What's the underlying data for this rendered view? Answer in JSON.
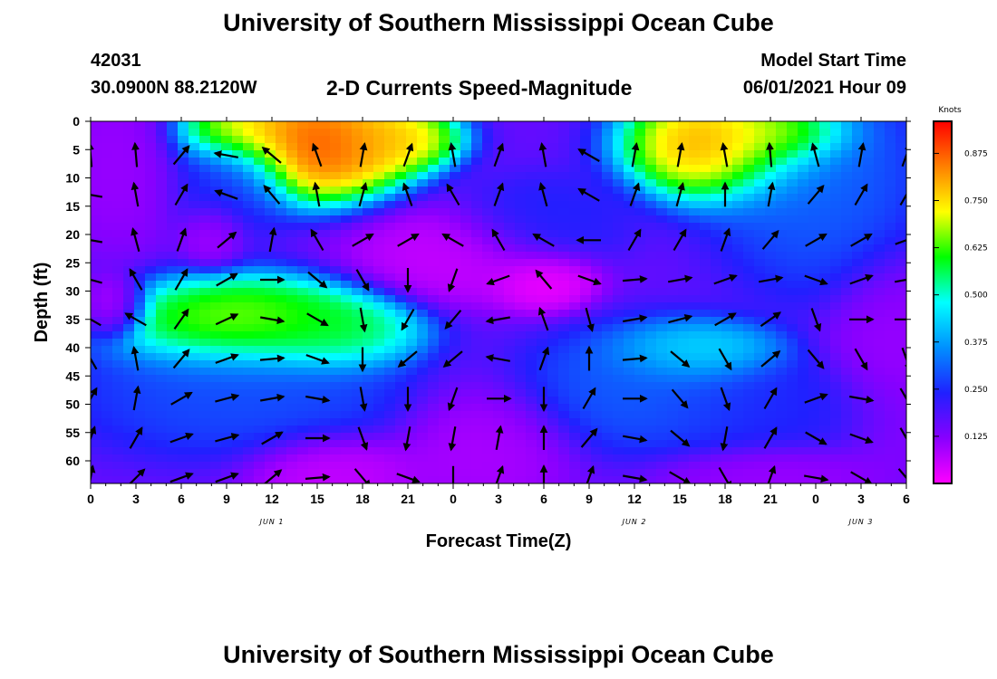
{
  "header": {
    "title": "University of Southern Mississippi Ocean Cube",
    "station_id": "42031",
    "station_coords": "30.0900N  88.2120W",
    "subtitle": "2-D Currents Speed-Magnitude",
    "model_start_label": "Model Start Time",
    "model_start_value": "06/01/2021 Hour 09"
  },
  "footer": {
    "title": "University of Southern Mississippi Ocean Cube"
  },
  "colors": {
    "scale": [
      "#ff00ff",
      "#8800ff",
      "#2020ff",
      "#0090ff",
      "#00ffff",
      "#00ff00",
      "#ffff00",
      "#ff8000",
      "#ff0000"
    ]
  },
  "chart_data": {
    "type": "heatmap",
    "title": "2-D Currents Speed-Magnitude",
    "xlabel": "Forecast Time(Z)",
    "ylabel": "Depth (ft)",
    "x_tick_labels": [
      "0",
      "3",
      "6",
      "9",
      "12",
      "15",
      "18",
      "21",
      "0",
      "3",
      "6",
      "9",
      "12",
      "15",
      "18",
      "21",
      "0",
      "3",
      "6"
    ],
    "x_range_hours": [
      0,
      54
    ],
    "y_tick_labels": [
      "0",
      "5",
      "10",
      "15",
      "20",
      "25",
      "30",
      "35",
      "40",
      "45",
      "50",
      "55",
      "60"
    ],
    "y_range_ft": [
      0,
      64
    ],
    "y_inverted": true,
    "date_labels": [
      {
        "text": "JUN 1",
        "hour": 12
      },
      {
        "text": "JUN 2",
        "hour": 36
      },
      {
        "text": "JUN 3",
        "hour": 51
      }
    ],
    "colorbar": {
      "unit": "Knots",
      "tick_labels": [
        "0.875",
        "0.750",
        "0.625",
        "0.500",
        "0.375",
        "0.250",
        "0.125"
      ],
      "tick_values": [
        0.875,
        0.75,
        0.625,
        0.5,
        0.375,
        0.25,
        0.125
      ],
      "range": [
        0.0,
        0.96
      ]
    },
    "speed_features": [
      {
        "hour": 15,
        "depth": 4,
        "speed": 0.95,
        "spread_h": 4.5,
        "spread_d": 7
      },
      {
        "hour": 10,
        "depth": 2,
        "speed": 0.85,
        "spread_h": 3,
        "spread_d": 4
      },
      {
        "hour": 20,
        "depth": 3,
        "speed": 0.8,
        "spread_h": 3,
        "spread_d": 4
      },
      {
        "hour": 42,
        "depth": 4,
        "speed": 0.9,
        "spread_h": 4.5,
        "spread_d": 7
      },
      {
        "hour": 46,
        "depth": 2,
        "speed": 0.8,
        "spread_h": 3,
        "spread_d": 4
      },
      {
        "hour": 10,
        "depth": 36,
        "speed": 0.72,
        "spread_h": 6,
        "spread_d": 6
      },
      {
        "hour": 16,
        "depth": 37,
        "speed": 0.6,
        "spread_h": 4,
        "spread_d": 5
      },
      {
        "hour": 40,
        "depth": 41,
        "speed": 0.5,
        "spread_h": 4,
        "spread_d": 4
      },
      {
        "hour": 37,
        "depth": 47,
        "speed": 0.32,
        "spread_h": 6,
        "spread_d": 8
      },
      {
        "hour": 10,
        "depth": 48,
        "speed": 0.3,
        "spread_h": 8,
        "spread_d": 8
      },
      {
        "hour": 48,
        "depth": 10,
        "speed": 0.32,
        "spread_h": 5,
        "spread_d": 14
      },
      {
        "hour": 9,
        "depth": 10,
        "speed": 0.25,
        "spread_h": 3,
        "spread_d": 8
      },
      {
        "hour": 30,
        "depth": 18,
        "speed": 0.25,
        "spread_h": 4,
        "spread_d": 6
      },
      {
        "hour": 45,
        "depth": 50,
        "speed": 0.25,
        "spread_h": 6,
        "spread_d": 6
      },
      {
        "hour": 30,
        "depth": 28,
        "speed": 0.0,
        "spread_h": 2.5,
        "spread_d": 4
      },
      {
        "hour": 24,
        "depth": 24,
        "speed": 0.05,
        "spread_h": 5,
        "spread_d": 6
      },
      {
        "hour": 1.5,
        "depth": 33,
        "speed": 0.05,
        "spread_h": 1.5,
        "spread_d": 4
      },
      {
        "hour": 8,
        "depth": 20,
        "speed": 0.08,
        "spread_h": 1.5,
        "spread_d": 4
      },
      {
        "hour": 16,
        "depth": 62,
        "speed": 0.05,
        "spread_h": 4,
        "spread_d": 5
      },
      {
        "hour": 45,
        "depth": 63,
        "speed": 0.1,
        "spread_h": 5,
        "spread_d": 4
      },
      {
        "hour": 26,
        "depth": 58,
        "speed": 0.08,
        "spread_h": 4,
        "spread_d": 8
      },
      {
        "hour": 2,
        "depth": 8,
        "speed": 0.1,
        "spread_h": 3,
        "spread_d": 10
      },
      {
        "hour": 53,
        "depth": 42,
        "speed": 0.1,
        "spread_h": 3,
        "spread_d": 12
      }
    ],
    "arrow_columns_hours": [
      0,
      3,
      6,
      9,
      12,
      15,
      18,
      21,
      24,
      27,
      30,
      33,
      36,
      39,
      42,
      45,
      48,
      51,
      54
    ],
    "arrow_rows_depth_ft": [
      6,
      13,
      21,
      28,
      35,
      42,
      49,
      56,
      63
    ],
    "arrow_direction_degrees": [
      [
        355,
        280,
        280,
        285,
        300,
        330,
        30,
        20,
        10
      ],
      [
        355,
        350,
        345,
        330,
        300,
        350,
        10,
        30,
        45
      ],
      [
        40,
        30,
        20,
        30,
        35,
        40,
        60,
        70,
        70
      ],
      [
        280,
        290,
        50,
        60,
        65,
        70,
        75,
        75,
        70
      ],
      [
        310,
        320,
        10,
        90,
        100,
        85,
        80,
        60,
        50
      ],
      [
        340,
        350,
        330,
        130,
        120,
        110,
        100,
        90,
        85
      ],
      [
        10,
        15,
        60,
        150,
        170,
        180,
        170,
        160,
        140
      ],
      [
        20,
        340,
        60,
        180,
        210,
        230,
        180,
        190,
        110
      ],
      [
        350,
        330,
        300,
        200,
        220,
        230,
        200,
        190,
        180
      ],
      [
        20,
        20,
        330,
        250,
        260,
        280,
        90,
        10,
        20
      ],
      [
        350,
        345,
        300,
        320,
        340,
        20,
        180,
        0,
        0
      ],
      [
        300,
        300,
        270,
        110,
        165,
        0,
        30,
        40,
        20
      ],
      [
        10,
        20,
        30,
        85,
        80,
        85,
        90,
        100,
        100
      ],
      [
        10,
        15,
        30,
        80,
        75,
        130,
        140,
        130,
        120
      ],
      [
        350,
        0,
        20,
        70,
        60,
        150,
        160,
        190,
        150
      ],
      [
        355,
        10,
        40,
        80,
        55,
        50,
        30,
        30,
        20
      ],
      [
        345,
        40,
        60,
        110,
        160,
        140,
        70,
        120,
        100
      ],
      [
        10,
        30,
        60,
        70,
        90,
        150,
        100,
        110,
        120
      ],
      [
        20,
        30,
        70,
        80,
        90,
        160,
        150,
        150,
        140
      ]
    ]
  }
}
